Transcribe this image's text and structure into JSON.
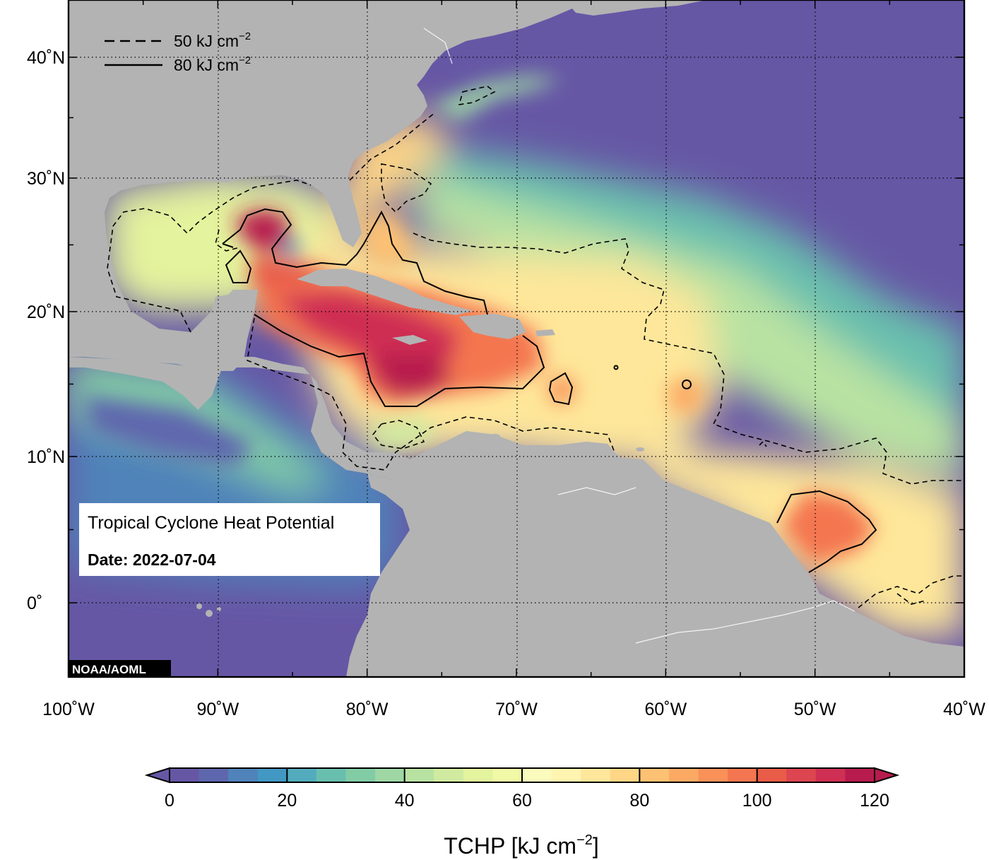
{
  "map": {
    "title": "Tropical Cyclone Heat Potential",
    "date_label": "Date: 2022-07-04",
    "credit": "NOAA/AOML",
    "extent": {
      "lon_min": -100,
      "lon_max": -40,
      "lat_min": -5,
      "lat_max": 44
    },
    "lon_ticks": [
      {
        "value": -100,
        "label": "100˚W"
      },
      {
        "value": -90,
        "label": "90˚W"
      },
      {
        "value": -80,
        "label": "80˚W"
      },
      {
        "value": -70,
        "label": "70˚W"
      },
      {
        "value": -60,
        "label": "60˚W"
      },
      {
        "value": -50,
        "label": "50˚W"
      },
      {
        "value": -40,
        "label": "40˚W"
      }
    ],
    "lat_ticks": [
      {
        "value": 0,
        "label": "0˚"
      },
      {
        "value": 10,
        "label": "10˚N"
      },
      {
        "value": 20,
        "label": "20˚N"
      },
      {
        "value": 30,
        "label": "30˚N"
      },
      {
        "value": 40,
        "label": "40˚N"
      }
    ],
    "legend": {
      "dashed": {
        "value": "50",
        "unit": "kJ cm",
        "exp": "−2"
      },
      "solid": {
        "value": "80",
        "unit": "kJ cm",
        "exp": "−2"
      }
    },
    "colors": {
      "land": "#b3b3b3",
      "ocean_cold": "#6557a5",
      "contour": "#000000"
    }
  },
  "colorbar": {
    "min": 0,
    "max": 120,
    "step": 5,
    "tick_labels": [
      "0",
      "20",
      "40",
      "60",
      "80",
      "100",
      "120"
    ],
    "title_main": "TCHP [kJ cm",
    "title_exp": "−2",
    "title_close": "]",
    "colors": [
      "#6657a5",
      "#5e67ae",
      "#4f83b9",
      "#4198c2",
      "#53acbd",
      "#69bfae",
      "#82cca5",
      "#9ed7a4",
      "#b8e2a2",
      "#d0eba0",
      "#e4f39d",
      "#f1f8a6",
      "#fafbbd",
      "#fff4b0",
      "#fee79a",
      "#fed686",
      "#fdc173",
      "#fcaa63",
      "#f99158",
      "#f47650",
      "#e95c48",
      "#dd4550",
      "#cf2f52",
      "#b81b4e"
    ]
  }
}
